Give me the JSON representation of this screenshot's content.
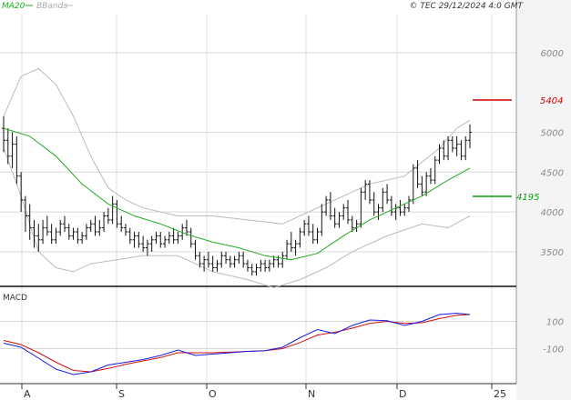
{
  "header": {
    "legend_ma": "MA20",
    "legend_bb": "BBands",
    "copyright": "© TEC 29/12/2024 4:0 GMT",
    "ma_color": "#22aa22",
    "bb_color": "#bbbbbb"
  },
  "macd_panel": {
    "label": "MACD"
  },
  "chart_data": {
    "type": "ohlc",
    "ylim": [
      3100,
      6500
    ],
    "y_ticks": [
      {
        "value": 6000,
        "label": "6000"
      },
      {
        "value": 5000,
        "label": "5000"
      },
      {
        "value": 4500,
        "label": "4500"
      },
      {
        "value": 4000,
        "label": "4000"
      },
      {
        "value": 3500,
        "label": "3500"
      }
    ],
    "grid": true,
    "x_months": [
      "A",
      "S",
      "O",
      "N",
      "D",
      "25"
    ],
    "resistance": {
      "value": 5404,
      "label": "5404",
      "color": "#cc0000"
    },
    "support": {
      "value": 4195,
      "label": "4195",
      "color": "#119911"
    },
    "ohlc": [
      [
        5050,
        5200,
        4750,
        4900
      ],
      [
        4900,
        5050,
        4600,
        4700
      ],
      [
        4700,
        5000,
        4550,
        4850
      ],
      [
        4850,
        4950,
        4350,
        4450
      ],
      [
        4450,
        4500,
        4000,
        4150
      ],
      [
        4150,
        4200,
        3750,
        3950
      ],
      [
        3950,
        4100,
        3650,
        3800
      ],
      [
        3800,
        3900,
        3550,
        3700
      ],
      [
        3700,
        3850,
        3500,
        3650
      ],
      [
        3650,
        3900,
        3600,
        3800
      ],
      [
        3800,
        3950,
        3700,
        3750
      ],
      [
        3750,
        3850,
        3600,
        3650
      ],
      [
        3650,
        3800,
        3600,
        3750
      ],
      [
        3750,
        3900,
        3700,
        3850
      ],
      [
        3850,
        3950,
        3750,
        3800
      ],
      [
        3800,
        3850,
        3650,
        3700
      ],
      [
        3700,
        3800,
        3650,
        3750
      ],
      [
        3750,
        3800,
        3600,
        3650
      ],
      [
        3650,
        3750,
        3600,
        3700
      ],
      [
        3700,
        3850,
        3650,
        3800
      ],
      [
        3800,
        3900,
        3750,
        3850
      ],
      [
        3850,
        3950,
        3700,
        3750
      ],
      [
        3750,
        3900,
        3700,
        3800
      ],
      [
        3800,
        4000,
        3750,
        3950
      ],
      [
        3950,
        4050,
        3850,
        3900
      ],
      [
        3900,
        4200,
        3850,
        4100
      ],
      [
        4100,
        4150,
        3800,
        3850
      ],
      [
        3850,
        3950,
        3750,
        3800
      ],
      [
        3800,
        3850,
        3700,
        3750
      ],
      [
        3750,
        3800,
        3600,
        3650
      ],
      [
        3650,
        3750,
        3550,
        3700
      ],
      [
        3700,
        3750,
        3550,
        3600
      ],
      [
        3600,
        3700,
        3500,
        3550
      ],
      [
        3550,
        3650,
        3450,
        3600
      ],
      [
        3600,
        3700,
        3500,
        3650
      ],
      [
        3650,
        3750,
        3600,
        3700
      ],
      [
        3700,
        3750,
        3550,
        3600
      ],
      [
        3600,
        3700,
        3550,
        3650
      ],
      [
        3650,
        3750,
        3600,
        3700
      ],
      [
        3700,
        3800,
        3600,
        3650
      ],
      [
        3650,
        3750,
        3600,
        3700
      ],
      [
        3700,
        3850,
        3650,
        3800
      ],
      [
        3800,
        3900,
        3700,
        3750
      ],
      [
        3750,
        3800,
        3550,
        3600
      ],
      [
        3600,
        3650,
        3400,
        3450
      ],
      [
        3450,
        3500,
        3300,
        3350
      ],
      [
        3350,
        3450,
        3250,
        3400
      ],
      [
        3400,
        3500,
        3300,
        3350
      ],
      [
        3350,
        3450,
        3250,
        3300
      ],
      [
        3300,
        3400,
        3250,
        3350
      ],
      [
        3350,
        3500,
        3300,
        3450
      ],
      [
        3450,
        3500,
        3350,
        3400
      ],
      [
        3400,
        3450,
        3300,
        3350
      ],
      [
        3350,
        3450,
        3300,
        3400
      ],
      [
        3400,
        3500,
        3350,
        3450
      ],
      [
        3450,
        3500,
        3300,
        3350
      ],
      [
        3350,
        3400,
        3250,
        3300
      ],
      [
        3300,
        3350,
        3200,
        3250
      ],
      [
        3250,
        3350,
        3200,
        3300
      ],
      [
        3300,
        3400,
        3250,
        3350
      ],
      [
        3350,
        3400,
        3250,
        3300
      ],
      [
        3300,
        3400,
        3250,
        3350
      ],
      [
        3350,
        3450,
        3300,
        3400
      ],
      [
        3400,
        3450,
        3300,
        3350
      ],
      [
        3350,
        3500,
        3300,
        3450
      ],
      [
        3450,
        3650,
        3400,
        3600
      ],
      [
        3600,
        3750,
        3500,
        3550
      ],
      [
        3550,
        3650,
        3450,
        3600
      ],
      [
        3600,
        3800,
        3550,
        3750
      ],
      [
        3750,
        3900,
        3700,
        3850
      ],
      [
        3850,
        3950,
        3700,
        3750
      ],
      [
        3750,
        3850,
        3600,
        3650
      ],
      [
        3650,
        3800,
        3600,
        3750
      ],
      [
        3750,
        4100,
        3700,
        4000
      ],
      [
        4000,
        4200,
        3950,
        4150
      ],
      [
        4150,
        4250,
        3900,
        3950
      ],
      [
        3950,
        4050,
        3800,
        3850
      ],
      [
        3850,
        4000,
        3800,
        3950
      ],
      [
        3950,
        4100,
        3900,
        4050
      ],
      [
        4050,
        4150,
        3850,
        3900
      ],
      [
        3900,
        3950,
        3750,
        3800
      ],
      [
        3800,
        3900,
        3750,
        3850
      ],
      [
        3850,
        4300,
        3800,
        4250
      ],
      [
        4250,
        4400,
        4150,
        4350
      ],
      [
        4350,
        4400,
        4100,
        4150
      ],
      [
        4150,
        4250,
        3950,
        4000
      ],
      [
        4000,
        4100,
        3900,
        4050
      ],
      [
        4050,
        4300,
        4000,
        4250
      ],
      [
        4250,
        4350,
        4100,
        4150
      ],
      [
        4150,
        4200,
        3950,
        4000
      ],
      [
        4000,
        4100,
        3900,
        4050
      ],
      [
        4050,
        4150,
        3950,
        4000
      ],
      [
        4000,
        4100,
        3950,
        4050
      ],
      [
        4050,
        4200,
        4000,
        4150
      ],
      [
        4150,
        4600,
        4100,
        4550
      ],
      [
        4550,
        4650,
        4300,
        4350
      ],
      [
        4350,
        4450,
        4200,
        4250
      ],
      [
        4250,
        4500,
        4200,
        4450
      ],
      [
        4450,
        4550,
        4350,
        4400
      ],
      [
        4400,
        4700,
        4350,
        4650
      ],
      [
        4650,
        4850,
        4600,
        4800
      ],
      [
        4800,
        4900,
        4650,
        4700
      ],
      [
        4700,
        4950,
        4650,
        4900
      ],
      [
        4900,
        4950,
        4750,
        4800
      ],
      [
        4800,
        4950,
        4700,
        4850
      ],
      [
        4850,
        4900,
        4650,
        4700
      ],
      [
        4700,
        4950,
        4650,
        4900
      ],
      [
        4900,
        5100,
        4800,
        5000
      ]
    ],
    "ma20": [
      [
        0,
        5050
      ],
      [
        6,
        4950
      ],
      [
        12,
        4700
      ],
      [
        18,
        4350
      ],
      [
        24,
        4100
      ],
      [
        30,
        3950
      ],
      [
        36,
        3850
      ],
      [
        42,
        3720
      ],
      [
        48,
        3620
      ],
      [
        54,
        3550
      ],
      [
        60,
        3450
      ],
      [
        66,
        3400
      ],
      [
        72,
        3480
      ],
      [
        78,
        3700
      ],
      [
        84,
        3900
      ],
      [
        90,
        4050
      ],
      [
        96,
        4200
      ],
      [
        102,
        4400
      ],
      [
        107,
        4550
      ]
    ],
    "bb_upper": [
      [
        0,
        5200
      ],
      [
        4,
        5700
      ],
      [
        8,
        5800
      ],
      [
        12,
        5600
      ],
      [
        16,
        5200
      ],
      [
        20,
        4700
      ],
      [
        24,
        4300
      ],
      [
        28,
        4150
      ],
      [
        32,
        4050
      ],
      [
        40,
        3950
      ],
      [
        48,
        3950
      ],
      [
        56,
        3900
      ],
      [
        64,
        3850
      ],
      [
        70,
        4000
      ],
      [
        76,
        4150
      ],
      [
        84,
        4350
      ],
      [
        92,
        4450
      ],
      [
        100,
        4800
      ],
      [
        104,
        5050
      ],
      [
        107,
        5150
      ]
    ],
    "bb_lower": [
      [
        0,
        4800
      ],
      [
        4,
        4200
      ],
      [
        8,
        3500
      ],
      [
        12,
        3300
      ],
      [
        16,
        3250
      ],
      [
        20,
        3350
      ],
      [
        26,
        3400
      ],
      [
        32,
        3450
      ],
      [
        40,
        3450
      ],
      [
        48,
        3250
      ],
      [
        56,
        3150
      ],
      [
        62,
        3050
      ],
      [
        68,
        3150
      ],
      [
        74,
        3300
      ],
      [
        80,
        3500
      ],
      [
        88,
        3700
      ],
      [
        96,
        3850
      ],
      [
        102,
        3800
      ],
      [
        107,
        3950
      ]
    ],
    "macd": [
      [
        0,
        -60
      ],
      [
        4,
        -90
      ],
      [
        8,
        -170
      ],
      [
        12,
        -250
      ],
      [
        16,
        -290
      ],
      [
        20,
        -270
      ],
      [
        24,
        -220
      ],
      [
        28,
        -200
      ],
      [
        32,
        -180
      ],
      [
        36,
        -150
      ],
      [
        40,
        -110
      ],
      [
        44,
        -150
      ],
      [
        48,
        -140
      ],
      [
        52,
        -130
      ],
      [
        56,
        -120
      ],
      [
        60,
        -115
      ],
      [
        64,
        -90
      ],
      [
        68,
        -20
      ],
      [
        72,
        40
      ],
      [
        76,
        10
      ],
      [
        80,
        70
      ],
      [
        84,
        110
      ],
      [
        88,
        105
      ],
      [
        92,
        70
      ],
      [
        96,
        100
      ],
      [
        100,
        150
      ],
      [
        104,
        160
      ],
      [
        107,
        150
      ]
    ],
    "signal": [
      [
        0,
        -40
      ],
      [
        4,
        -70
      ],
      [
        8,
        -130
      ],
      [
        12,
        -200
      ],
      [
        16,
        -260
      ],
      [
        20,
        -270
      ],
      [
        24,
        -245
      ],
      [
        28,
        -215
      ],
      [
        32,
        -190
      ],
      [
        36,
        -165
      ],
      [
        40,
        -130
      ],
      [
        44,
        -130
      ],
      [
        48,
        -130
      ],
      [
        52,
        -125
      ],
      [
        56,
        -120
      ],
      [
        60,
        -115
      ],
      [
        64,
        -100
      ],
      [
        68,
        -55
      ],
      [
        72,
        0
      ],
      [
        76,
        20
      ],
      [
        80,
        50
      ],
      [
        84,
        85
      ],
      [
        88,
        100
      ],
      [
        92,
        85
      ],
      [
        96,
        90
      ],
      [
        100,
        120
      ],
      [
        104,
        145
      ],
      [
        107,
        150
      ]
    ],
    "macd_ylim": [
      -330,
      310
    ],
    "macd_ticks": [
      {
        "value": 100,
        "label": "100"
      },
      {
        "value": -100,
        "label": "-100"
      }
    ],
    "macd_color": "#1a1ae6",
    "signal_color": "#cc1111"
  }
}
